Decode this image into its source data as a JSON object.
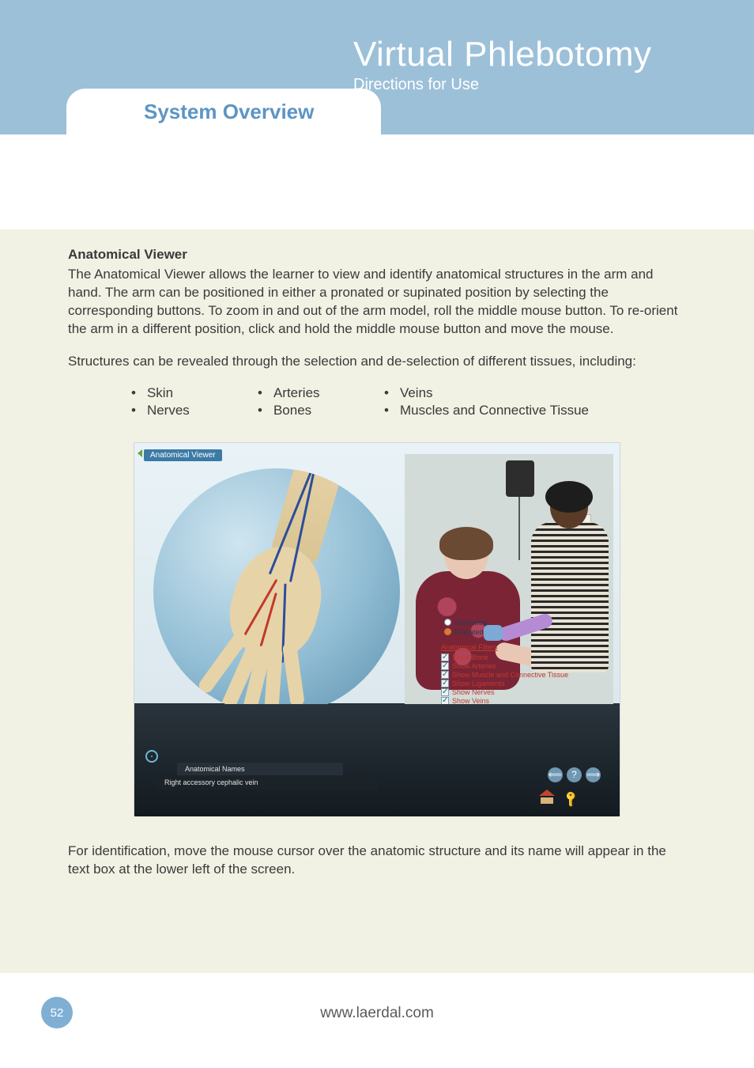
{
  "header": {
    "title": "Virtual Phlebotomy",
    "subtitle": "Directions for Use",
    "tab": "System Overview"
  },
  "section": {
    "heading": "Anatomical Viewer",
    "para1": "The Anatomical Viewer allows the learner to view and identify anatomical structures in the arm and hand. The arm can be positioned in either a pronated or supinated position by selecting the corresponding buttons. To zoom in and out of the arm model, roll the middle mouse button. To re-orient the arm in a different position, click and hold the middle mouse button and move the mouse.",
    "para2": "Structures can be revealed through the selection and de-selection of different tissues, including:",
    "tissues": {
      "col1": [
        "Skin",
        "Nerves"
      ],
      "col2": [
        "Arteries",
        "Bones"
      ],
      "col3": [
        "Veins",
        "Muscles  and Connective Tissue"
      ]
    },
    "para3": "For identification, move the mouse cursor over the anatomic structure and its name will appear in the text box at the lower left of the screen."
  },
  "screenshot": {
    "titlebar": "Anatomical Viewer",
    "orientation_label": "Orientation",
    "radios": {
      "supinated": "Supinated",
      "pronated": "Pronated",
      "selected": "pronated"
    },
    "filters_title": "Anatomical Filters",
    "filters": [
      "Show Bone",
      "Show Arteries",
      "Show Muscle and Connective Tissue",
      "Show Ligaments",
      "Show Nerves",
      "Show Veins",
      "Show Skin"
    ],
    "anat_names_label": "Anatomical Names",
    "anat_names_value": "Right accessory cephalic vein",
    "nav": {
      "back": "⟸",
      "help": "?",
      "fwd": "⟹"
    }
  },
  "footer": {
    "page_number": "52",
    "url": "www.laerdal.com"
  },
  "colors": {
    "band": "#9dc0d9",
    "content_bg": "#f1f2e4",
    "accent_blue": "#5c95c5",
    "pagenum_bg": "#7fb0d4"
  }
}
